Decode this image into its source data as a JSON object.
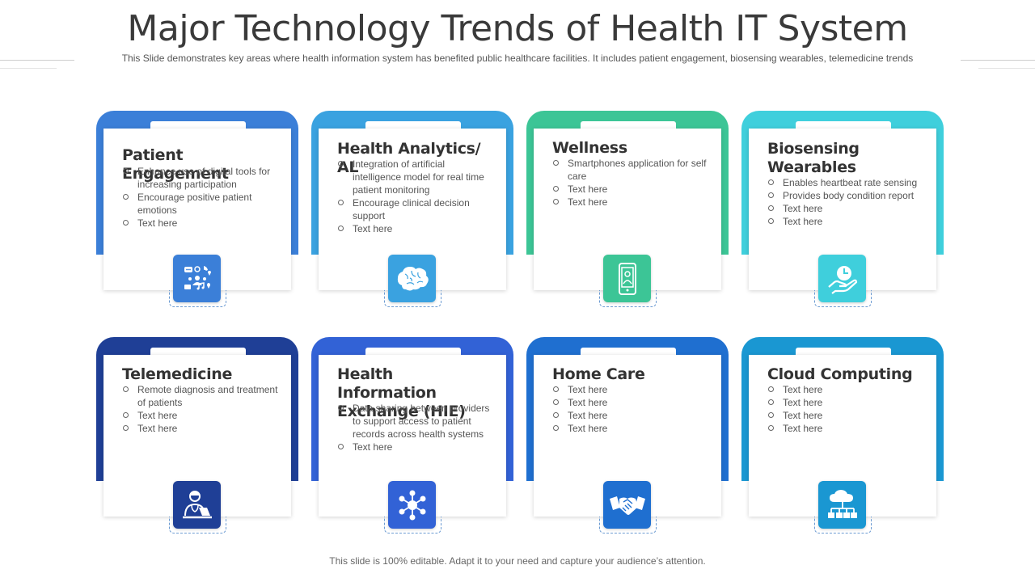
{
  "slide": {
    "title": "Major Technology Trends of Health IT System",
    "subtitle": "This Slide demonstrates key areas where health information system has benefited public healthcare facilities. It includes patient engagement, biosensing wearables, telemedicine trends",
    "footer": "This slide is 100% editable. Adapt it to your need and capture your audience’s attention."
  },
  "cards": [
    {
      "title": "Patient Engagement",
      "items": [
        "Enhance use of digital tools for increasing participation",
        "Encourage positive patient emotions",
        "Text here"
      ],
      "color": "#3b7fd8",
      "icon": "social-media-icon"
    },
    {
      "title": "Health Analytics/ AL",
      "items": [
        "Integration of artificial intelligence model for real time patient monitoring",
        "Encourage clinical decision support",
        "Text here"
      ],
      "color": "#3aa2e0",
      "icon": "brain-icon"
    },
    {
      "title": "Wellness",
      "items": [
        "Smartphones application for self care",
        "Text here",
        "Text here"
      ],
      "color": "#3cc596",
      "icon": "smartphone-icon"
    },
    {
      "title": "Biosensing Wearables",
      "items": [
        "Enables heartbeat rate sensing",
        "Provides body condition report",
        "Text here",
        "Text here"
      ],
      "color": "#3fcfdc",
      "icon": "hand-clock-icon"
    },
    {
      "title": "Telemedicine",
      "items": [
        "Remote diagnosis and treatment of patients",
        "Text here",
        "Text here"
      ],
      "color": "#1f3f96",
      "icon": "doctor-laptop-icon"
    },
    {
      "title": "Health Information Exchange (HIE)",
      "items": [
        "Data sharing between providers to support access to patient records across health systems",
        "Text here"
      ],
      "color": "#3262d6",
      "icon": "network-icon"
    },
    {
      "title": "Home Care",
      "items": [
        "Text here",
        "Text here",
        "Text here",
        "Text here"
      ],
      "color": "#1f6fd0",
      "icon": "handshake-icon"
    },
    {
      "title": "Cloud Computing",
      "items": [
        "Text here",
        "Text here",
        "Text here",
        "Text here"
      ],
      "color": "#1a97d2",
      "icon": "cloud-network-icon"
    }
  ]
}
